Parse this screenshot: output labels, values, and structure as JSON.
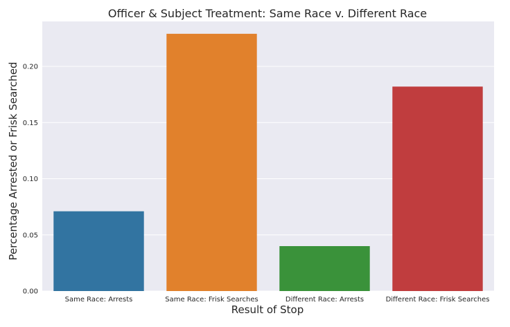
{
  "chart_data": {
    "type": "bar",
    "title": "Officer & Subject Treatment: Same Race v. Different Race",
    "xlabel": "Result of Stop",
    "ylabel": "Percentage Arrested or Frisk Searched",
    "categories": [
      "Same Race: Arrests",
      "Same Race: Frisk Searches",
      "Different Race: Arrests",
      "Different Race: Frisk Searches"
    ],
    "values": [
      0.071,
      0.229,
      0.04,
      0.182
    ],
    "colors": [
      "#3274a1",
      "#e1812c",
      "#3a923a",
      "#c03d3e"
    ],
    "ylim": [
      0,
      0.24
    ],
    "yticks": [
      "0.00",
      "0.05",
      "0.10",
      "0.15",
      "0.20"
    ],
    "grid": true,
    "background": "#eaeaf2"
  }
}
